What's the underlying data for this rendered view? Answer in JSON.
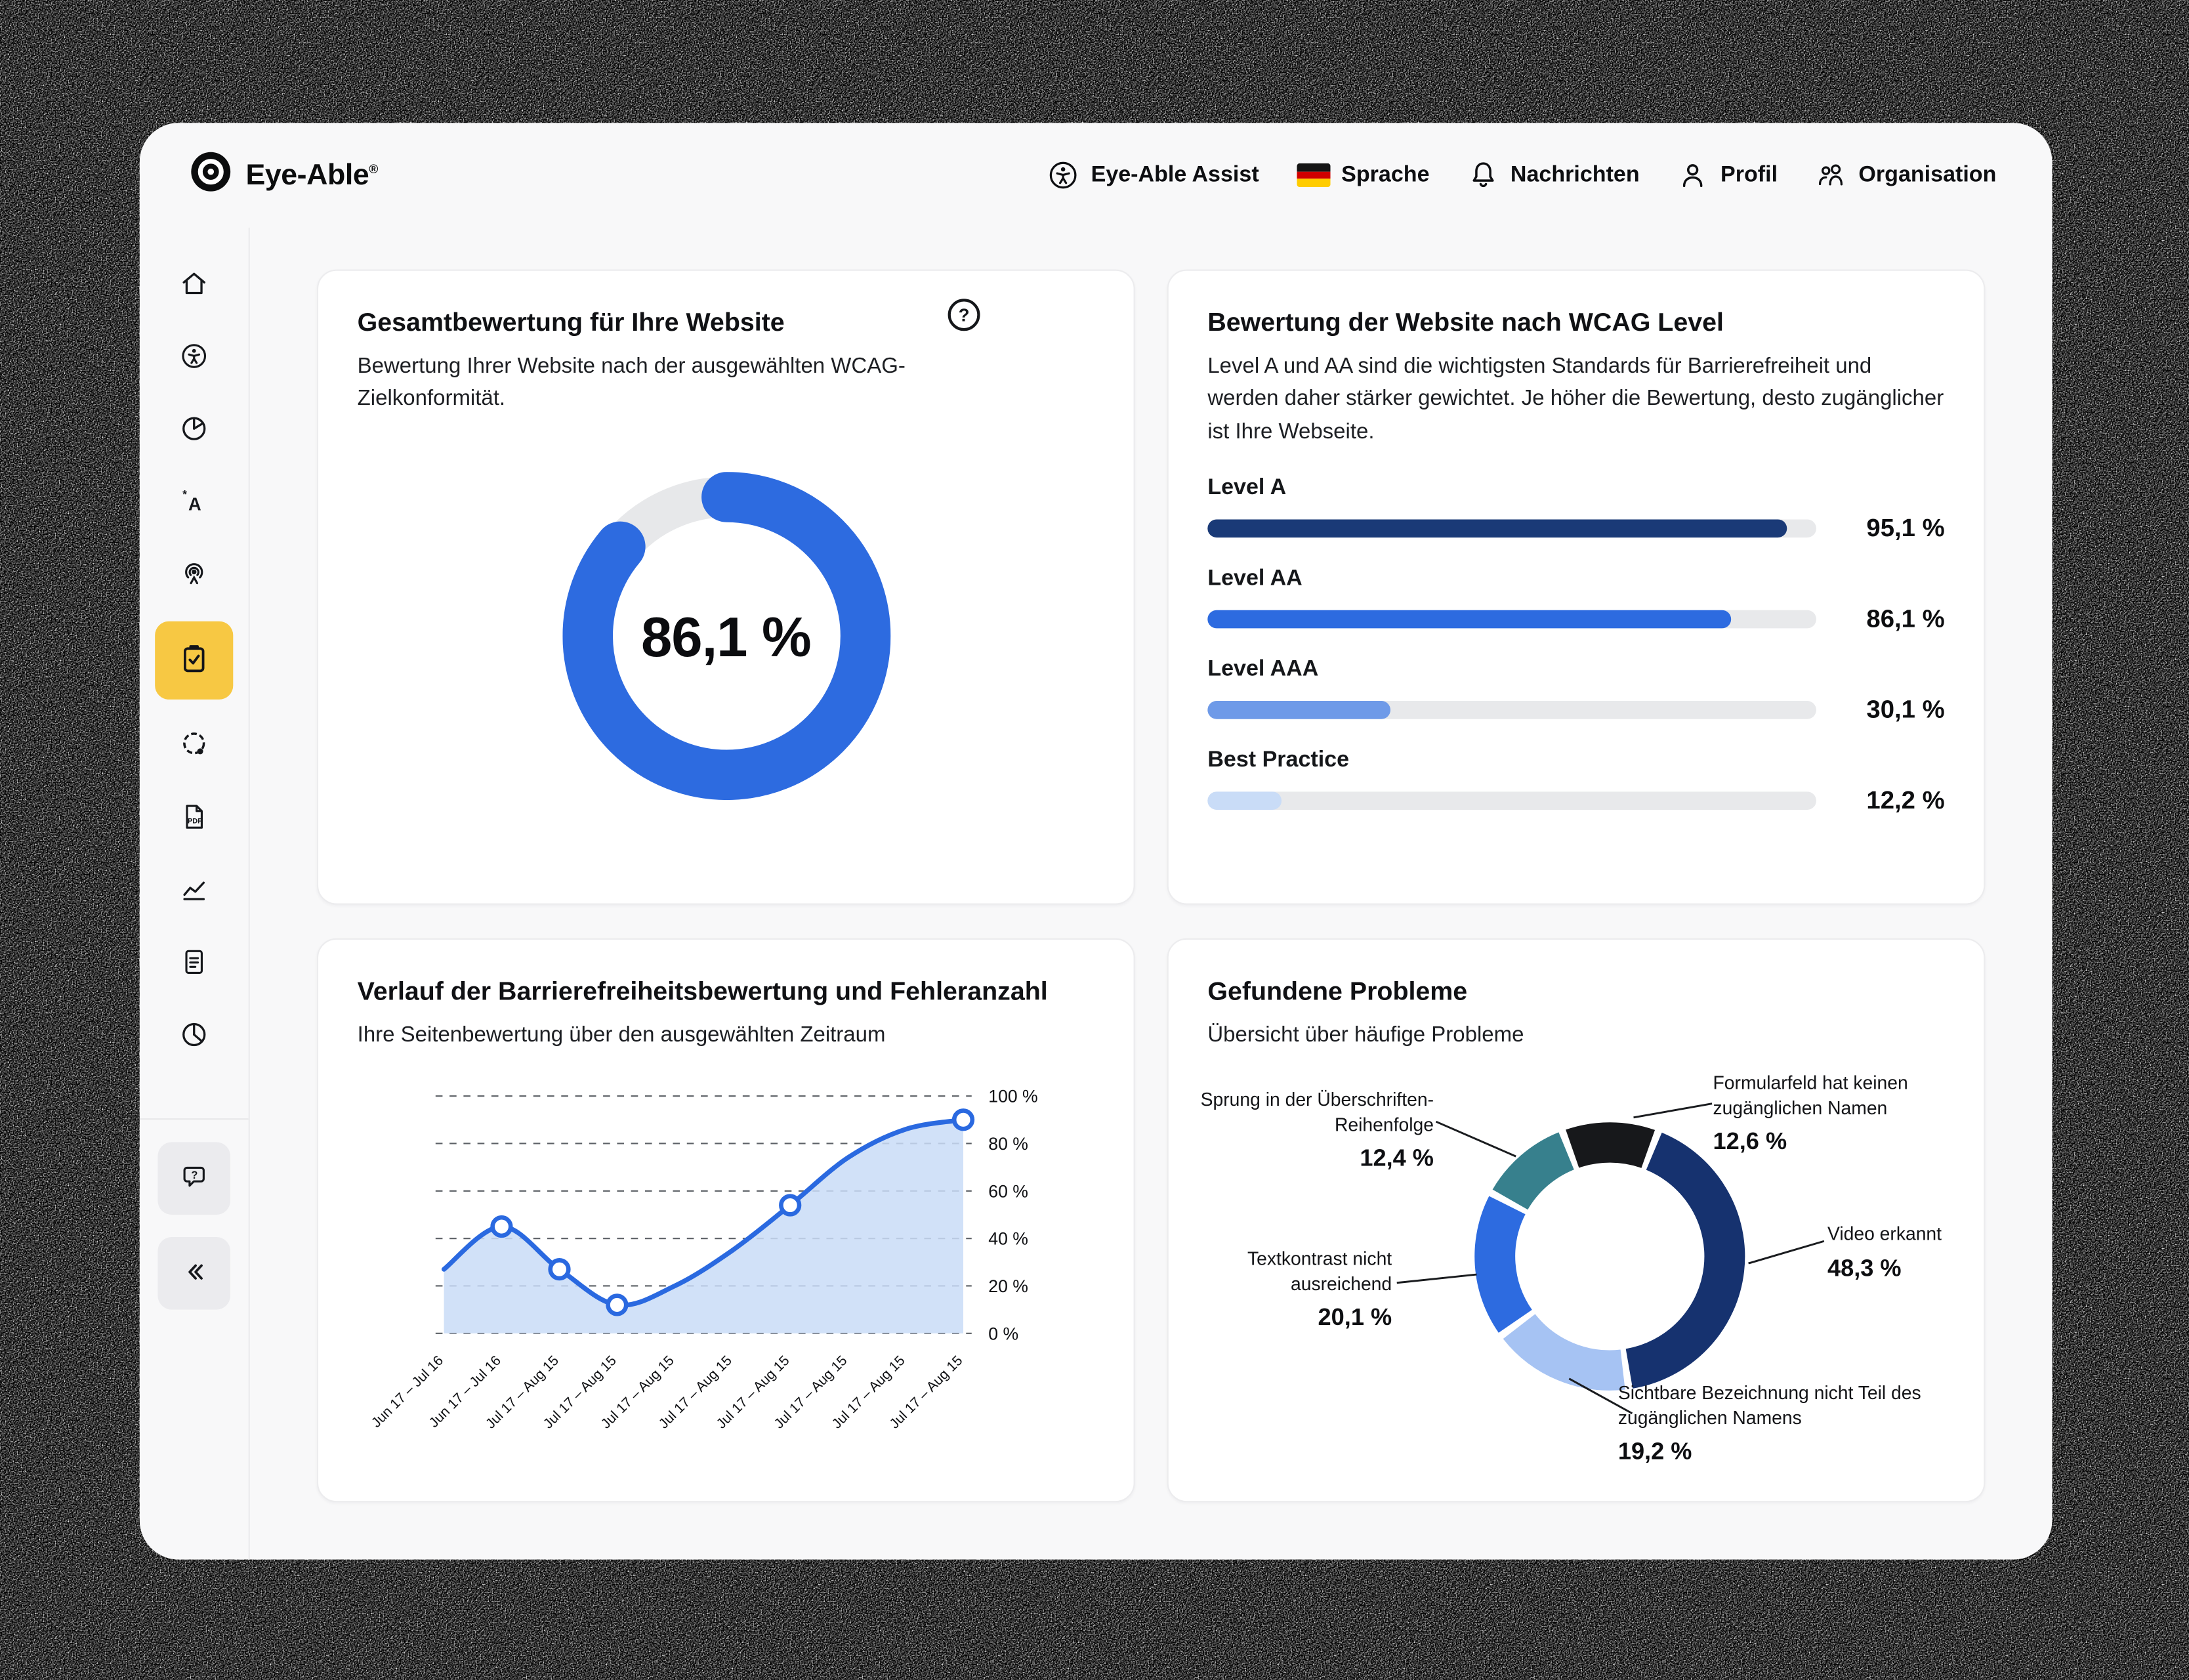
{
  "app": {
    "brand": "Eye-Able",
    "registered": "®"
  },
  "header": {
    "nav": [
      {
        "label": "Eye-Able Assist",
        "icon": "accessibility-circle-icon"
      },
      {
        "label": "Sprache",
        "icon": "german-flag-icon"
      },
      {
        "label": "Nachrichten",
        "icon": "bell-icon"
      },
      {
        "label": "Profil",
        "icon": "person-icon"
      },
      {
        "label": "Organisation",
        "icon": "group-icon"
      }
    ]
  },
  "sidebar": {
    "items": [
      "home",
      "accessibility",
      "reports",
      "translation",
      "assist",
      "audit",
      "contrast",
      "pdf",
      "trend",
      "report-file",
      "statistics"
    ],
    "active_item": "audit",
    "footer_items": [
      "support-chat",
      "collapse"
    ]
  },
  "cards": {
    "overall": {
      "title": "Gesamtbewertung für Ihre Website",
      "subtitle": "Bewertung Ihrer Website nach der ausgewählten WCAG-Zielkonformität.",
      "help": "?"
    },
    "wcag": {
      "title": "Bewertung der Website nach WCAG Level",
      "description": "Level A und AA sind die wichtigsten Standards für Barrierefreiheit und werden daher stärker gewichtet. Je höher die Bewertung, desto zugänglicher ist Ihre Webseite."
    },
    "history": {
      "title": "Verlauf der Barrierefreiheitsbewertung und Fehleranzahl",
      "subtitle": "Ihre Seitenbewertung über den ausgewählten Zeitraum"
    },
    "problems": {
      "title": "Gefundene Probleme",
      "subtitle": "Übersicht über häufige Probleme"
    }
  },
  "chart_data": [
    {
      "id": "overall-score",
      "type": "pie",
      "style": "donut-progress",
      "title": "Gesamtbewertung für Ihre Website",
      "value": 86.1,
      "max": 100,
      "value_label": "86,1 %",
      "colors": {
        "fill": "#2d6be0",
        "track": "#e7e8ea"
      }
    },
    {
      "id": "wcag-levels",
      "type": "bar",
      "orientation": "horizontal",
      "title": "Bewertung der Website nach WCAG Level",
      "categories": [
        "Level A",
        "Level AA",
        "Level AAA",
        "Best Practice"
      ],
      "values": [
        95.1,
        86.1,
        30.1,
        12.2
      ],
      "value_labels": [
        "95,1 %",
        "86,1 %",
        "30,1 %",
        "12,2 %"
      ],
      "xlim": [
        0,
        100
      ],
      "colors": [
        "#1a3a77",
        "#2d6be0",
        "#6e9ae8",
        "#c9dcf7"
      ]
    },
    {
      "id": "score-history",
      "type": "area",
      "title": "Verlauf der Barrierefreiheitsbewertung und Fehleranzahl",
      "x": [
        "Jun 17 – Jul 16",
        "Jun 17 – Jul 16",
        "Jul 17 – Aug 15",
        "Jul 17 – Aug 15",
        "Jul 17 – Aug 15",
        "Jul 17 – Aug 15",
        "Jul 17 – Aug 15",
        "Jul 17 – Aug 15",
        "Jul 17 – Aug 15",
        "Jul 17 – Aug 15"
      ],
      "values": [
        27,
        45,
        27,
        12,
        20,
        35,
        54,
        74,
        86,
        90
      ],
      "markers_at": [
        1,
        2,
        3,
        6,
        9
      ],
      "ylim": [
        0,
        100
      ],
      "ytick_labels": [
        "0 %",
        "20 %",
        "40 %",
        "60 %",
        "80 %",
        "100 %"
      ],
      "grid": "dashed",
      "legend": "none",
      "colors": {
        "line": "#2a69e0",
        "area": "#c9dcf7"
      }
    },
    {
      "id": "found-problems",
      "type": "pie",
      "style": "donut",
      "title": "Gefundene Probleme",
      "labels": [
        "Formularfeld hat keinen zugänglichen Namen",
        "Video erkannt",
        "Sichtbare Bezeichnung nicht Teil des zugänglichen Namens",
        "Textkontrast nicht ausreichend",
        "Sprung in der Überschriften-Reihenfolge"
      ],
      "values": [
        12.6,
        48.3,
        19.2,
        20.1,
        12.4
      ],
      "value_labels": [
        "12,6 %",
        "48,3 %",
        "19,2 %",
        "20,1 %",
        "12,4 %"
      ],
      "colors": [
        "#17181b",
        "#16326f",
        "#a6c3f3",
        "#2d6be0",
        "#37808d"
      ]
    }
  ]
}
